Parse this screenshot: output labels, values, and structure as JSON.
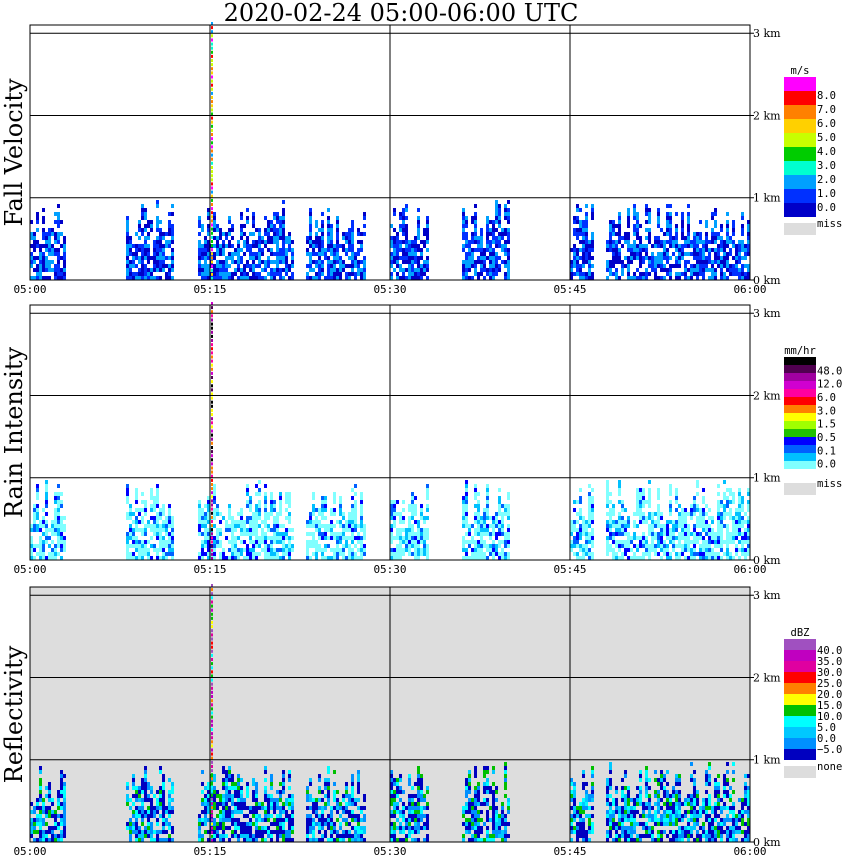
{
  "title": "2020-02-24   05:00-06:00 UTC",
  "x_ticks": [
    "05:00",
    "05:15",
    "05:30",
    "05:45",
    "06:00"
  ],
  "height_ticks": [
    "0 km",
    "1 km",
    "2 km",
    "3 km"
  ],
  "chart_data": [
    {
      "type": "heatmap",
      "ylabel": "Fall Velocity",
      "xlabel": "",
      "x_range": [
        "05:00",
        "06:00"
      ],
      "y_range_km": [
        0,
        3.1
      ],
      "grid": true,
      "background": "#ffffff",
      "colorbar": {
        "unit": "m/s",
        "levels": [
          "8.0",
          "7.0",
          "6.0",
          "5.0",
          "4.0",
          "3.0",
          "2.0",
          "1.0",
          "0.0"
        ],
        "colors": [
          "#ff00ff",
          "#ff0000",
          "#ff8000",
          "#ffd000",
          "#c8ff00",
          "#00cc00",
          "#00ffd0",
          "#00a0ff",
          "#0030ff",
          "#0000c8"
        ],
        "missing_label": "miss",
        "missing_color": "#dddddd"
      },
      "echo_intervals": [
        [
          "05:00",
          "05:03"
        ],
        [
          "05:08",
          "05:12"
        ],
        [
          "05:14",
          "05:22"
        ],
        [
          "05:23",
          "05:28"
        ],
        [
          "05:30",
          "05:33"
        ],
        [
          "05:36",
          "05:40"
        ],
        [
          "05:45",
          "05:47"
        ],
        [
          "05:48",
          "06:00"
        ]
      ],
      "typical_echo_top_km": 0.9,
      "spike_time": "05:15"
    },
    {
      "type": "heatmap",
      "ylabel": "Rain Intensity",
      "xlabel": "",
      "x_range": [
        "05:00",
        "06:00"
      ],
      "y_range_km": [
        0,
        3.1
      ],
      "grid": true,
      "background": "#ffffff",
      "colorbar": {
        "unit": "mm/hr",
        "levels": [
          "48.0",
          "12.0",
          "6.0",
          "3.0",
          "1.5",
          "0.5",
          "0.1",
          "0.0"
        ],
        "colors": [
          "#000000",
          "#500050",
          "#a000a0",
          "#d000d0",
          "#ff00a0",
          "#ff0000",
          "#ff8000",
          "#ffff00",
          "#a0ff00",
          "#20c000",
          "#0000ff",
          "#0060ff",
          "#00c0ff",
          "#80ffff",
          "#ffffff"
        ],
        "missing_label": "miss",
        "missing_color": "#dddddd"
      },
      "echo_intervals": [
        [
          "05:00",
          "05:03"
        ],
        [
          "05:08",
          "05:12"
        ],
        [
          "05:14",
          "05:22"
        ],
        [
          "05:23",
          "05:28"
        ],
        [
          "05:30",
          "05:33"
        ],
        [
          "05:36",
          "05:40"
        ],
        [
          "05:45",
          "05:47"
        ],
        [
          "05:48",
          "06:00"
        ]
      ],
      "typical_echo_top_km": 0.9,
      "spike_time": "05:15"
    },
    {
      "type": "heatmap",
      "ylabel": "Reflectivity",
      "xlabel": "",
      "x_range": [
        "05:00",
        "06:00"
      ],
      "y_range_km": [
        0,
        3.1
      ],
      "grid": true,
      "background": "#dddddd",
      "colorbar": {
        "unit": "dBZ",
        "levels": [
          "40.0",
          "35.0",
          "30.0",
          "25.0",
          "20.0",
          "15.0",
          "10.0",
          "5.0",
          "0.0",
          "−5.0"
        ],
        "colors": [
          "#a050c0",
          "#c000c0",
          "#e000a0",
          "#ff0000",
          "#ff8000",
          "#ffff00",
          "#00c000",
          "#00ffff",
          "#00c8ff",
          "#0090ff",
          "#0000c0"
        ],
        "missing_label": "none",
        "missing_color": "#dddddd"
      },
      "echo_intervals": [
        [
          "05:00",
          "05:03"
        ],
        [
          "05:08",
          "05:12"
        ],
        [
          "05:14",
          "05:22"
        ],
        [
          "05:23",
          "05:28"
        ],
        [
          "05:30",
          "05:33"
        ],
        [
          "05:36",
          "05:40"
        ],
        [
          "05:45",
          "05:47"
        ],
        [
          "05:48",
          "06:00"
        ]
      ],
      "typical_echo_top_km": 0.9,
      "spike_time": "05:15"
    }
  ]
}
